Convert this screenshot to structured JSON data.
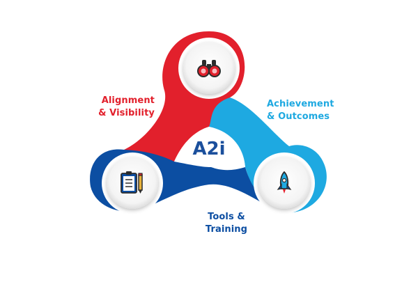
{
  "center_text": "A2i",
  "segments": [
    {
      "id": "alignment",
      "lines": [
        "Alignment",
        "& Visibility"
      ],
      "color": "#e2202c",
      "icon": "binoculars-icon"
    },
    {
      "id": "achievement",
      "lines": [
        "Achievement",
        "& Outcomes"
      ],
      "color": "#1ea9e1",
      "icon": "rocket-icon"
    },
    {
      "id": "tools",
      "lines": [
        "Tools &",
        "Training"
      ],
      "color": "#0c4ea2",
      "icon": "clipboard-checklist-icon"
    }
  ],
  "colors": {
    "red": "#e2202c",
    "cyan": "#1ea9e1",
    "blue": "#0c4ea2",
    "center_text": "#1b4f9c"
  }
}
